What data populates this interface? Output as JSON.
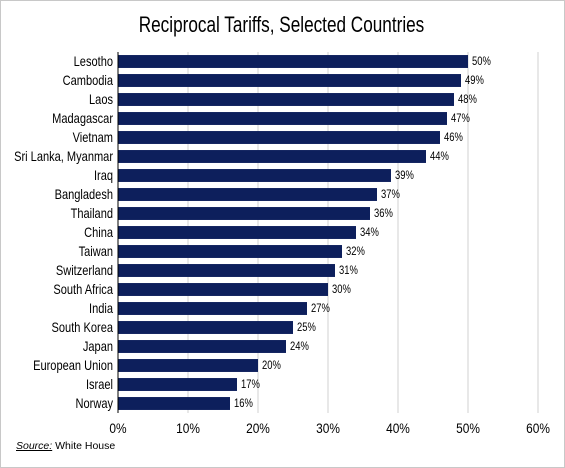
{
  "chart_data": {
    "type": "bar",
    "orientation": "horizontal",
    "title": "Reciprocal Tariffs, Selected Countries",
    "categories": [
      "Lesotho",
      "Cambodia",
      "Laos",
      "Madagascar",
      "Vietnam",
      "Sri Lanka, Myanmar",
      "Iraq",
      "Bangladesh",
      "Thailand",
      "China",
      "Taiwan",
      "Switzerland",
      "South Africa",
      "India",
      "South Korea",
      "Japan",
      "European Union",
      "Israel",
      "Norway"
    ],
    "values": [
      50,
      49,
      48,
      47,
      46,
      44,
      39,
      37,
      36,
      34,
      32,
      31,
      30,
      27,
      25,
      24,
      20,
      17,
      16
    ],
    "value_labels": [
      "50%",
      "49%",
      "48%",
      "47%",
      "46%",
      "44%",
      "39%",
      "37%",
      "36%",
      "34%",
      "32%",
      "31%",
      "30%",
      "27%",
      "25%",
      "24%",
      "20%",
      "17%",
      "16%"
    ],
    "xlim": [
      0,
      60
    ],
    "xticks": [
      0,
      10,
      20,
      30,
      40,
      50,
      60
    ],
    "xtick_labels": [
      "0%",
      "10%",
      "20%",
      "30%",
      "40%",
      "50%",
      "60%"
    ],
    "xlabel": "",
    "ylabel": "",
    "grid": "vertical",
    "bar_color": "#0d1f5c",
    "gridline_color": "#d0d0d0"
  },
  "source": {
    "label": "Source:",
    "text": "White House"
  }
}
